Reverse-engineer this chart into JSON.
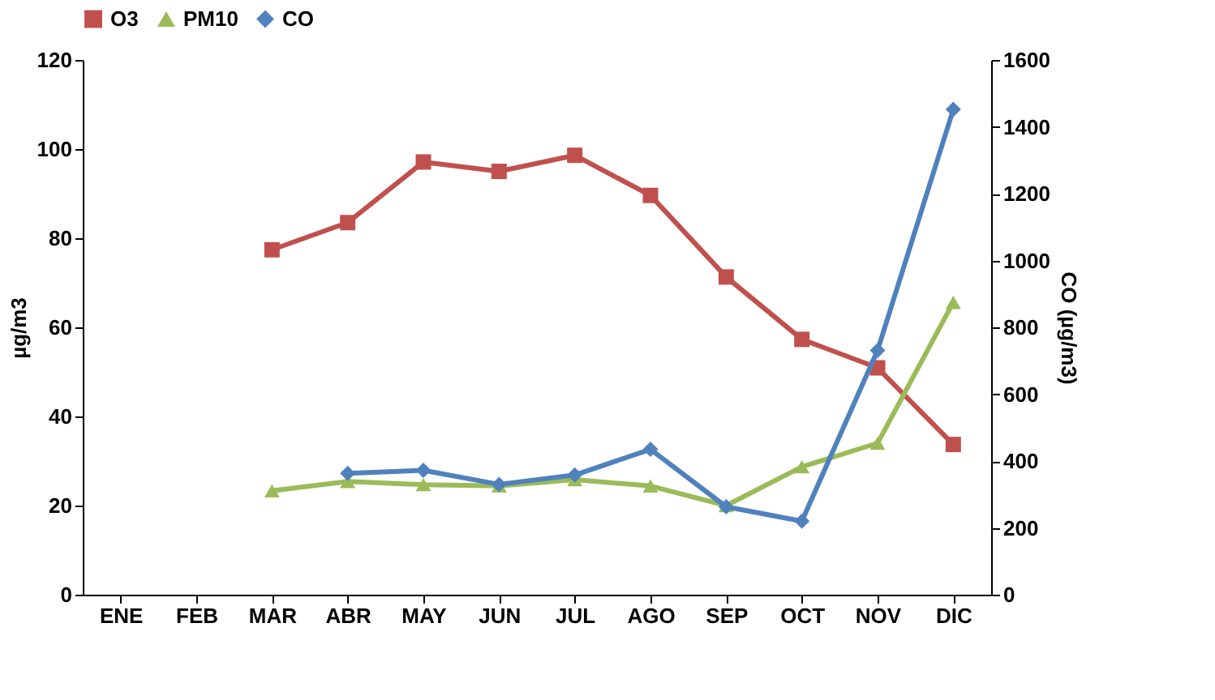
{
  "chart_data": {
    "type": "line",
    "ylabel": "µg/m3",
    "y2label": "CO (µg/m3)",
    "categories": [
      "ENE",
      "FEB",
      "MAR",
      "ABR",
      "MAY",
      "JUN",
      "JUL",
      "AGO",
      "SEP",
      "OCT",
      "NOV",
      "DIC"
    ],
    "series": [
      {
        "name": "O3",
        "color": "#c0504d",
        "marker": "square",
        "values": [
          null,
          null,
          77.4,
          83.5,
          97.1,
          95.0,
          98.6,
          89.6,
          71.3,
          57.3,
          50.9,
          33.7
        ]
      },
      {
        "name": "PM10",
        "color": "#9bbb59",
        "marker": "triangle",
        "values": [
          null,
          null,
          23.3,
          25.4,
          24.7,
          24.4,
          25.8,
          24.4,
          20.0,
          28.7,
          34.0,
          65.6
        ]
      },
      {
        "name": "CO",
        "color": "#4f81bd",
        "marker": "diamond",
        "axis": "y2",
        "values": [
          null,
          null,
          null,
          363,
          372,
          330,
          358,
          435,
          263,
          220,
          731,
          1452
        ]
      }
    ],
    "ylim": [
      0,
      120
    ],
    "yticks": [
      0,
      20,
      40,
      60,
      80,
      100,
      120
    ],
    "y2lim": [
      0,
      1600
    ],
    "y2ticks": [
      0,
      200,
      400,
      600,
      800,
      1000,
      1200,
      1400,
      1600
    ],
    "grid": false,
    "legend": "top"
  }
}
